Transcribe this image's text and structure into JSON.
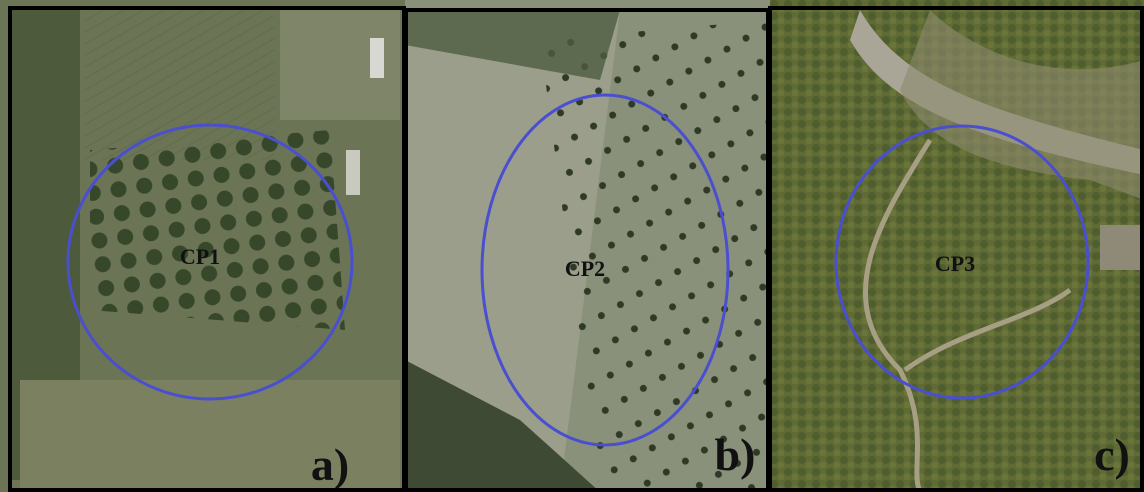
{
  "panels": [
    {
      "site": "CP1",
      "letter": "a)"
    },
    {
      "site": "CP2",
      "letter": "b)"
    },
    {
      "site": "CP3",
      "letter": "c)"
    }
  ]
}
